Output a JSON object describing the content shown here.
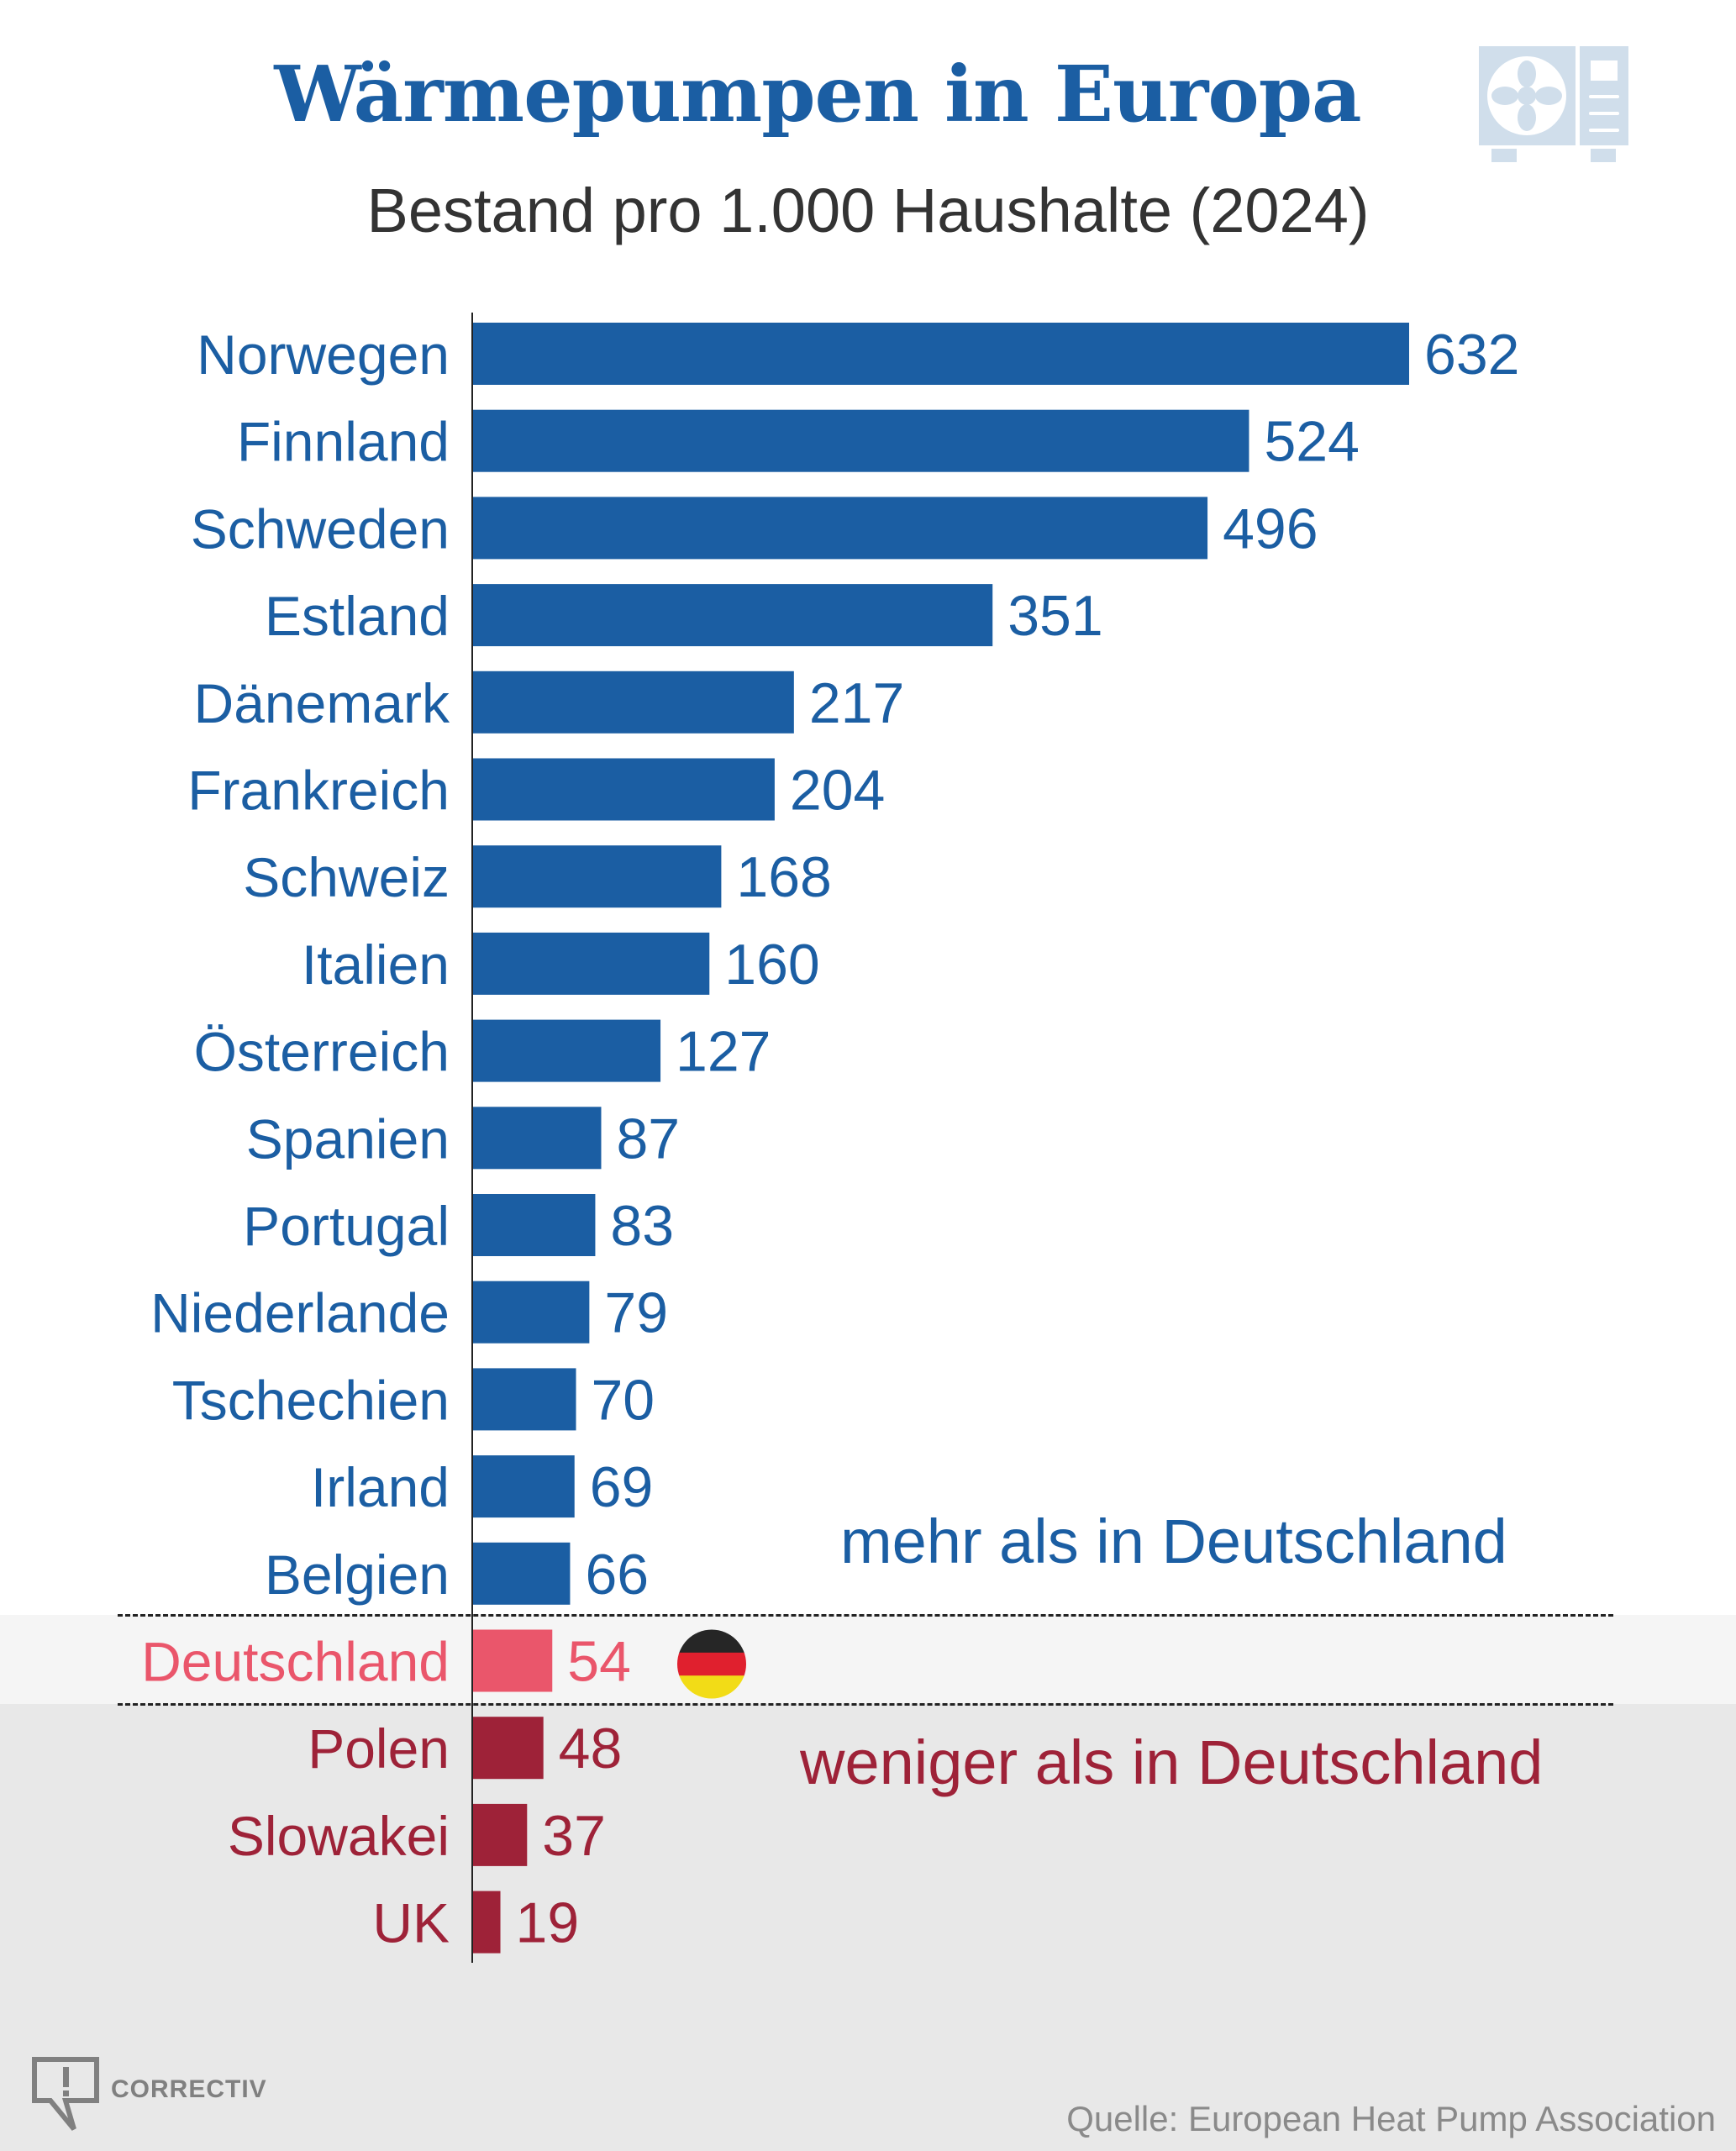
{
  "header": {
    "title": "Wärmepumpen in Europa",
    "subtitle": "Bestand pro 1.000 Haushalte (2024)",
    "icon": "heat-pump-icon"
  },
  "annotations": {
    "more": "mehr als in Deutschland",
    "less": "weniger als in Deutschland",
    "flag_icon": "germany-flag-icon"
  },
  "footer": {
    "logo_text": "CORRECTIV",
    "logo_icon": "speech-bubble-exclamation-icon",
    "source": "Quelle: European Heat Pump Association"
  },
  "colors": {
    "more": "#1b5ea3",
    "germany": "#ea566b",
    "less": "#9e2238",
    "icon": "#d0deeb"
  },
  "chart_data": {
    "type": "bar",
    "orientation": "horizontal",
    "title": "Wärmepumpen in Europa",
    "subtitle": "Bestand pro 1.000 Haushalte (2024)",
    "xlabel": "",
    "ylabel": "",
    "xlim": [
      0,
      632
    ],
    "grid": false,
    "categories": [
      "Norwegen",
      "Finnland",
      "Schweden",
      "Estland",
      "Dänemark",
      "Frankreich",
      "Schweiz",
      "Italien",
      "Österreich",
      "Spanien",
      "Portugal",
      "Niederlande",
      "Tschechien",
      "Irland",
      "Belgien",
      "Deutschland",
      "Polen",
      "Slowakei",
      "UK"
    ],
    "values": [
      632,
      524,
      496,
      351,
      217,
      204,
      168,
      160,
      127,
      87,
      83,
      79,
      70,
      69,
      66,
      54,
      48,
      37,
      19
    ],
    "groups": [
      "more",
      "more",
      "more",
      "more",
      "more",
      "more",
      "more",
      "more",
      "more",
      "more",
      "more",
      "more",
      "more",
      "more",
      "more",
      "germany",
      "less",
      "less",
      "less"
    ],
    "value_labels": [
      "632",
      "524",
      "496",
      "351",
      "217",
      "204",
      "168",
      "160",
      "127",
      "87",
      "83",
      "79",
      "70",
      "69",
      "66",
      "54",
      "48",
      "37",
      "19"
    ]
  }
}
